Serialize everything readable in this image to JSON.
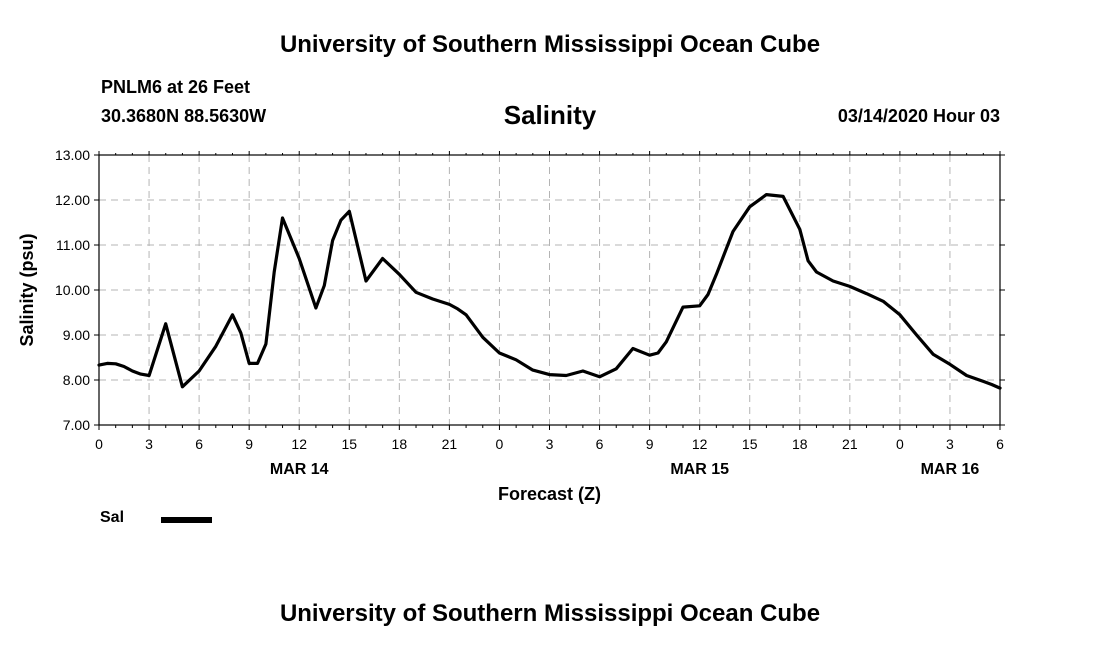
{
  "header": {
    "top_title": "University of Southern Mississippi Ocean Cube",
    "bottom_title": "University of Southern Mississippi Ocean Cube",
    "station": "PNLM6 at 26 Feet",
    "coords": "30.3680N 88.5630W",
    "chart_title": "Salinity",
    "timestamp": "03/14/2020 Hour 03"
  },
  "legend": {
    "label": "Sal"
  },
  "colors": {
    "line": "#000000",
    "grid": "#b4b4b4"
  },
  "chart_data": {
    "type": "line",
    "title": "Salinity",
    "xlabel": "Forecast (Z)",
    "ylabel": "Salinity (psu)",
    "ylim": [
      7.0,
      13.0
    ],
    "yticks": [
      "7.00",
      "8.00",
      "9.00",
      "10.00",
      "11.00",
      "12.00",
      "13.00"
    ],
    "xlim": [
      0,
      54
    ],
    "xticks": [
      "0",
      "3",
      "6",
      "9",
      "12",
      "15",
      "18",
      "21",
      "0",
      "3",
      "6",
      "9",
      "12",
      "15",
      "18",
      "21",
      "0",
      "3",
      "6"
    ],
    "date_labels": [
      {
        "x": 12,
        "label": "MAR 14"
      },
      {
        "x": 36,
        "label": "MAR 15"
      },
      {
        "x": 51,
        "label": "MAR 16"
      }
    ],
    "grid": true,
    "legend_position": "bottom-left",
    "series": [
      {
        "name": "Sal",
        "x": [
          0,
          0.5,
          1,
          1.5,
          2,
          2.5,
          3,
          4,
          5,
          6,
          7,
          8,
          8.5,
          9,
          9.5,
          10,
          10.5,
          11,
          12,
          13,
          13.5,
          14,
          14.5,
          15,
          16,
          17,
          18,
          19,
          20,
          21,
          21.5,
          22,
          23,
          24,
          25,
          26,
          27,
          28,
          29,
          30,
          31,
          32,
          33,
          33.5,
          34,
          35,
          36,
          36.5,
          37,
          38,
          39,
          40,
          41,
          42,
          42.5,
          43,
          44,
          45,
          46,
          47,
          48,
          49,
          50,
          51,
          52,
          53,
          53.5,
          54
        ],
        "values": [
          8.33,
          8.37,
          8.36,
          8.3,
          8.2,
          8.13,
          8.1,
          9.25,
          7.85,
          8.2,
          8.75,
          9.45,
          9.05,
          8.37,
          8.37,
          8.8,
          10.4,
          11.6,
          10.7,
          9.6,
          10.1,
          11.1,
          11.55,
          11.75,
          10.2,
          10.7,
          10.35,
          9.95,
          9.8,
          9.68,
          9.58,
          9.45,
          8.95,
          8.6,
          8.45,
          8.22,
          8.12,
          8.1,
          8.2,
          8.07,
          8.25,
          8.7,
          8.55,
          8.6,
          8.85,
          9.62,
          9.65,
          9.9,
          10.35,
          11.3,
          11.85,
          12.12,
          12.08,
          11.35,
          10.65,
          10.4,
          10.2,
          10.08,
          9.92,
          9.75,
          9.45,
          9.0,
          8.57,
          8.35,
          8.1,
          7.97,
          7.9,
          7.82
        ]
      }
    ]
  }
}
